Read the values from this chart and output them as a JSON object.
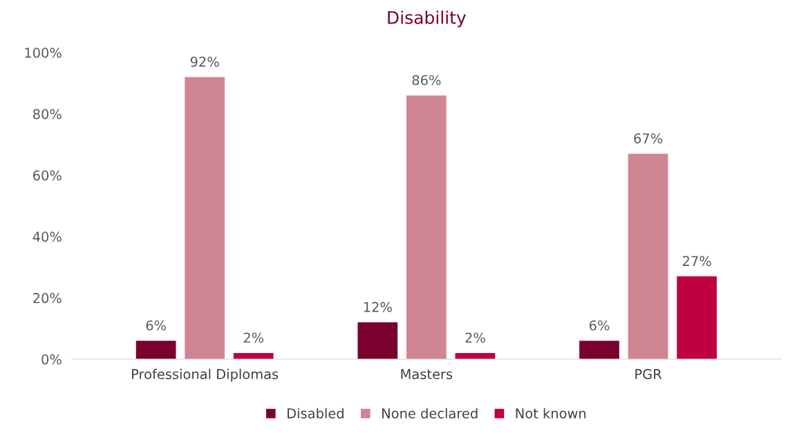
{
  "chart_data": {
    "type": "bar",
    "title": "Disability",
    "categories": [
      "Professional Diplomas",
      "Masters",
      "PGR"
    ],
    "series": [
      {
        "name": "Disabled",
        "color": "#7a0030",
        "values": [
          6,
          12,
          6
        ],
        "value_labels": [
          "6%",
          "12%",
          "6%"
        ]
      },
      {
        "name": "None declared",
        "color": "#d08593",
        "values": [
          92,
          86,
          67
        ],
        "value_labels": [
          "92%",
          "86%",
          "67%"
        ]
      },
      {
        "name": "Not known",
        "color": "#bf0041",
        "values": [
          2,
          2,
          27
        ],
        "value_labels": [
          "2%",
          "2%",
          "27%"
        ]
      }
    ],
    "ylim": [
      0,
      100
    ],
    "yticks": [
      {
        "value": 0,
        "label": "0%"
      },
      {
        "value": 20,
        "label": "20%"
      },
      {
        "value": 40,
        "label": "40%"
      },
      {
        "value": 60,
        "label": "60%"
      },
      {
        "value": 80,
        "label": "80%"
      },
      {
        "value": 100,
        "label": "100%"
      }
    ],
    "legend": "bottom"
  }
}
